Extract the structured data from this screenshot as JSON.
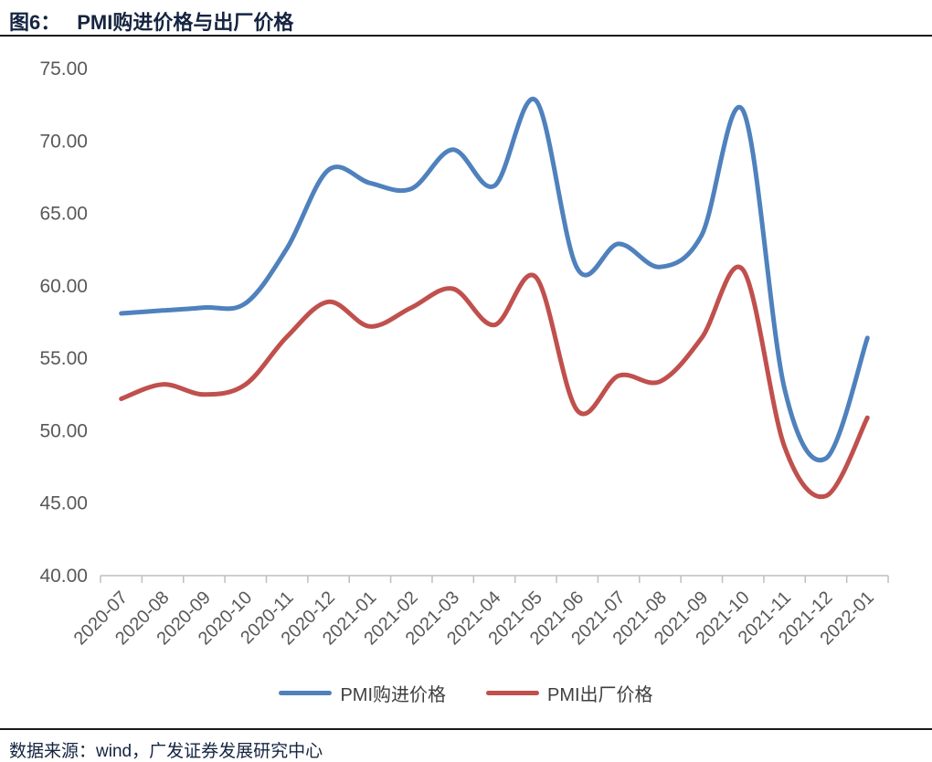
{
  "header": {
    "figure_label": "图6：",
    "title": "PMI购进价格与出厂价格"
  },
  "footer": {
    "source": "数据来源：wind，广发证券发展研究中心"
  },
  "legend": [
    {
      "label": "PMI购进价格",
      "color": "#4f81bd"
    },
    {
      "label": "PMI出厂价格",
      "color": "#c0504d"
    }
  ],
  "colors": {
    "title_navy": "#152440",
    "axis_text_gray": "#595959",
    "axis_line_gray": "#bfbfbf",
    "rule_dark": "#1a1a1a",
    "series_blue": "#4f81bd",
    "series_red": "#c0504d"
  },
  "chart_data": {
    "type": "line",
    "smooth": true,
    "title": "图6：PMI购进价格与出厂价格",
    "xlabel": "",
    "ylabel": "",
    "categories": [
      "2020-07",
      "2020-08",
      "2020-09",
      "2020-10",
      "2020-11",
      "2020-12",
      "2021-01",
      "2021-02",
      "2021-03",
      "2021-04",
      "2021-05",
      "2021-06",
      "2021-07",
      "2021-08",
      "2021-09",
      "2021-10",
      "2021-11",
      "2021-12",
      "2022-01"
    ],
    "series": [
      {
        "name": "PMI购进价格",
        "color": "#4f81bd",
        "values": [
          58.1,
          58.3,
          58.5,
          58.8,
          62.6,
          68.0,
          67.1,
          66.7,
          69.4,
          66.9,
          72.8,
          61.2,
          62.9,
          61.3,
          63.5,
          72.1,
          52.9,
          48.1,
          56.4
        ]
      },
      {
        "name": "PMI出厂价格",
        "color": "#c0504d",
        "values": [
          52.2,
          53.2,
          52.5,
          53.2,
          56.5,
          58.9,
          57.2,
          58.5,
          59.8,
          57.3,
          60.6,
          51.4,
          53.8,
          53.4,
          56.4,
          61.1,
          48.9,
          45.5,
          50.9
        ]
      }
    ],
    "ylim": [
      40,
      75
    ],
    "ytick_step": 5,
    "ytick_labels": [
      "75.00",
      "70.00",
      "65.00",
      "60.00",
      "55.00",
      "50.00",
      "45.00",
      "40.00"
    ],
    "grid": false,
    "legend_position": "bottom",
    "x_label_rotation_deg": -45
  }
}
